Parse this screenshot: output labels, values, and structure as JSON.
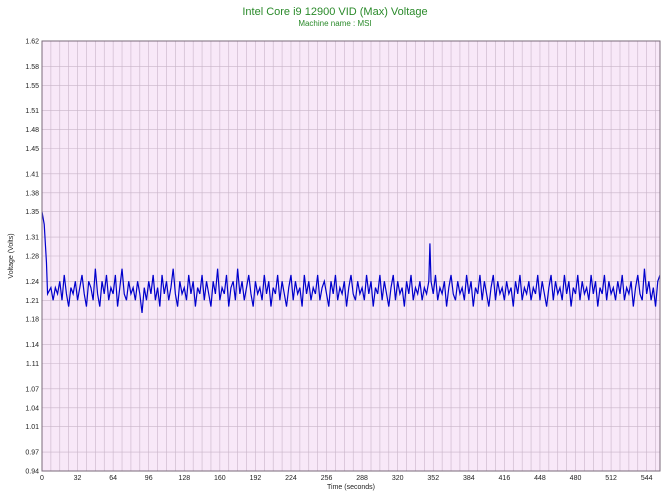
{
  "chart_data": {
    "type": "line",
    "title": "Intel Core i9 12900 VID (Max) Voltage",
    "subtitle": "Machine name : MSI",
    "xlabel": "Time (seconds)",
    "ylabel": "Voltage (Volts)",
    "xlim": [
      0,
      556
    ],
    "ylim": [
      0.94,
      1.62
    ],
    "xticks": [
      0,
      32,
      64,
      96,
      128,
      160,
      192,
      224,
      256,
      288,
      320,
      352,
      384,
      416,
      448,
      480,
      512,
      544
    ],
    "yticks": [
      "0.94",
      "0.97",
      "1.01",
      "1.04",
      "1.07",
      "1.11",
      "1.14",
      "1.18",
      "1.21",
      "1.24",
      "1.28",
      "1.31",
      "1.35",
      "1.38",
      "1.41",
      "1.45",
      "1.48",
      "1.51",
      "1.55",
      "1.58",
      "1.62"
    ],
    "grid": true,
    "colors": {
      "line": "#0000cc",
      "plot_bg": "#f8e8f8",
      "grid": "#c8b4c8",
      "title": "#2a8a2a"
    },
    "series": [
      {
        "values": [
          [
            0,
            1.35
          ],
          [
            1,
            1.34
          ],
          [
            2,
            1.33
          ],
          [
            3,
            1.3
          ],
          [
            4,
            1.27
          ],
          [
            5,
            1.22
          ],
          [
            8,
            1.23
          ],
          [
            10,
            1.21
          ],
          [
            12,
            1.23
          ],
          [
            14,
            1.22
          ],
          [
            16,
            1.24
          ],
          [
            18,
            1.21
          ],
          [
            20,
            1.25
          ],
          [
            22,
            1.22
          ],
          [
            24,
            1.2
          ],
          [
            26,
            1.23
          ],
          [
            28,
            1.22
          ],
          [
            30,
            1.24
          ],
          [
            32,
            1.21
          ],
          [
            34,
            1.23
          ],
          [
            36,
            1.25
          ],
          [
            38,
            1.22
          ],
          [
            40,
            1.2
          ],
          [
            42,
            1.24
          ],
          [
            44,
            1.23
          ],
          [
            46,
            1.21
          ],
          [
            48,
            1.26
          ],
          [
            50,
            1.22
          ],
          [
            52,
            1.2
          ],
          [
            54,
            1.24
          ],
          [
            56,
            1.22
          ],
          [
            58,
            1.25
          ],
          [
            60,
            1.21
          ],
          [
            62,
            1.23
          ],
          [
            64,
            1.22
          ],
          [
            66,
            1.25
          ],
          [
            68,
            1.2
          ],
          [
            70,
            1.23
          ],
          [
            72,
            1.26
          ],
          [
            74,
            1.22
          ],
          [
            76,
            1.21
          ],
          [
            78,
            1.24
          ],
          [
            80,
            1.22
          ],
          [
            82,
            1.23
          ],
          [
            84,
            1.21
          ],
          [
            86,
            1.24
          ],
          [
            88,
            1.22
          ],
          [
            90,
            1.19
          ],
          [
            92,
            1.23
          ],
          [
            94,
            1.21
          ],
          [
            96,
            1.24
          ],
          [
            98,
            1.22
          ],
          [
            100,
            1.25
          ],
          [
            102,
            1.21
          ],
          [
            104,
            1.23
          ],
          [
            106,
            1.2
          ],
          [
            108,
            1.25
          ],
          [
            110,
            1.22
          ],
          [
            112,
            1.24
          ],
          [
            114,
            1.21
          ],
          [
            116,
            1.23
          ],
          [
            118,
            1.26
          ],
          [
            120,
            1.22
          ],
          [
            122,
            1.2
          ],
          [
            124,
            1.24
          ],
          [
            126,
            1.22
          ],
          [
            128,
            1.23
          ],
          [
            130,
            1.21
          ],
          [
            132,
            1.25
          ],
          [
            134,
            1.22
          ],
          [
            136,
            1.24
          ],
          [
            138,
            1.2
          ],
          [
            140,
            1.23
          ],
          [
            142,
            1.22
          ],
          [
            144,
            1.25
          ],
          [
            146,
            1.21
          ],
          [
            148,
            1.24
          ],
          [
            150,
            1.22
          ],
          [
            152,
            1.2
          ],
          [
            154,
            1.24
          ],
          [
            156,
            1.22
          ],
          [
            158,
            1.26
          ],
          [
            160,
            1.21
          ],
          [
            162,
            1.23
          ],
          [
            164,
            1.22
          ],
          [
            166,
            1.25
          ],
          [
            168,
            1.2
          ],
          [
            170,
            1.23
          ],
          [
            172,
            1.24
          ],
          [
            174,
            1.21
          ],
          [
            176,
            1.26
          ],
          [
            178,
            1.22
          ],
          [
            180,
            1.24
          ],
          [
            182,
            1.21
          ],
          [
            184,
            1.23
          ],
          [
            186,
            1.25
          ],
          [
            188,
            1.22
          ],
          [
            190,
            1.2
          ],
          [
            192,
            1.24
          ],
          [
            194,
            1.22
          ],
          [
            196,
            1.23
          ],
          [
            198,
            1.21
          ],
          [
            200,
            1.25
          ],
          [
            202,
            1.22
          ],
          [
            204,
            1.24
          ],
          [
            206,
            1.2
          ],
          [
            208,
            1.23
          ],
          [
            210,
            1.22
          ],
          [
            212,
            1.25
          ],
          [
            214,
            1.21
          ],
          [
            216,
            1.24
          ],
          [
            218,
            1.22
          ],
          [
            220,
            1.2
          ],
          [
            222,
            1.23
          ],
          [
            224,
            1.25
          ],
          [
            226,
            1.21
          ],
          [
            228,
            1.24
          ],
          [
            230,
            1.22
          ],
          [
            232,
            1.23
          ],
          [
            234,
            1.2
          ],
          [
            236,
            1.25
          ],
          [
            238,
            1.22
          ],
          [
            240,
            1.24
          ],
          [
            242,
            1.21
          ],
          [
            244,
            1.23
          ],
          [
            246,
            1.22
          ],
          [
            248,
            1.25
          ],
          [
            250,
            1.21
          ],
          [
            252,
            1.23
          ],
          [
            254,
            1.24
          ],
          [
            256,
            1.22
          ],
          [
            258,
            1.2
          ],
          [
            260,
            1.24
          ],
          [
            262,
            1.22
          ],
          [
            264,
            1.25
          ],
          [
            266,
            1.21
          ],
          [
            268,
            1.23
          ],
          [
            270,
            1.22
          ],
          [
            272,
            1.24
          ],
          [
            274,
            1.2
          ],
          [
            276,
            1.23
          ],
          [
            278,
            1.25
          ],
          [
            280,
            1.22
          ],
          [
            282,
            1.21
          ],
          [
            284,
            1.24
          ],
          [
            286,
            1.22
          ],
          [
            288,
            1.23
          ],
          [
            290,
            1.21
          ],
          [
            292,
            1.25
          ],
          [
            294,
            1.22
          ],
          [
            296,
            1.24
          ],
          [
            298,
            1.2
          ],
          [
            300,
            1.23
          ],
          [
            302,
            1.22
          ],
          [
            304,
            1.25
          ],
          [
            306,
            1.21
          ],
          [
            308,
            1.24
          ],
          [
            310,
            1.22
          ],
          [
            312,
            1.2
          ],
          [
            314,
            1.23
          ],
          [
            316,
            1.25
          ],
          [
            318,
            1.21
          ],
          [
            320,
            1.24
          ],
          [
            322,
            1.22
          ],
          [
            324,
            1.23
          ],
          [
            326,
            1.2
          ],
          [
            328,
            1.24
          ],
          [
            330,
            1.22
          ],
          [
            332,
            1.25
          ],
          [
            334,
            1.21
          ],
          [
            336,
            1.23
          ],
          [
            338,
            1.22
          ],
          [
            340,
            1.24
          ],
          [
            342,
            1.21
          ],
          [
            344,
            1.23
          ],
          [
            346,
            1.22
          ],
          [
            348,
            1.24
          ],
          [
            349,
            1.3
          ],
          [
            350,
            1.24
          ],
          [
            352,
            1.22
          ],
          [
            354,
            1.25
          ],
          [
            356,
            1.21
          ],
          [
            358,
            1.23
          ],
          [
            360,
            1.22
          ],
          [
            362,
            1.24
          ],
          [
            364,
            1.2
          ],
          [
            366,
            1.23
          ],
          [
            368,
            1.25
          ],
          [
            370,
            1.22
          ],
          [
            372,
            1.21
          ],
          [
            374,
            1.24
          ],
          [
            376,
            1.22
          ],
          [
            378,
            1.23
          ],
          [
            380,
            1.21
          ],
          [
            382,
            1.25
          ],
          [
            384,
            1.22
          ],
          [
            386,
            1.24
          ],
          [
            388,
            1.2
          ],
          [
            390,
            1.23
          ],
          [
            392,
            1.22
          ],
          [
            394,
            1.25
          ],
          [
            396,
            1.21
          ],
          [
            398,
            1.24
          ],
          [
            400,
            1.22
          ],
          [
            402,
            1.2
          ],
          [
            404,
            1.23
          ],
          [
            406,
            1.25
          ],
          [
            408,
            1.21
          ],
          [
            410,
            1.24
          ],
          [
            412,
            1.22
          ],
          [
            414,
            1.23
          ],
          [
            416,
            1.21
          ],
          [
            418,
            1.24
          ],
          [
            420,
            1.22
          ],
          [
            422,
            1.23
          ],
          [
            424,
            1.2
          ],
          [
            426,
            1.24
          ],
          [
            428,
            1.22
          ],
          [
            430,
            1.25
          ],
          [
            432,
            1.21
          ],
          [
            434,
            1.23
          ],
          [
            436,
            1.22
          ],
          [
            438,
            1.24
          ],
          [
            440,
            1.21
          ],
          [
            442,
            1.23
          ],
          [
            444,
            1.22
          ],
          [
            446,
            1.25
          ],
          [
            448,
            1.21
          ],
          [
            450,
            1.24
          ],
          [
            452,
            1.22
          ],
          [
            454,
            1.2
          ],
          [
            456,
            1.23
          ],
          [
            458,
            1.25
          ],
          [
            460,
            1.21
          ],
          [
            462,
            1.24
          ],
          [
            464,
            1.22
          ],
          [
            466,
            1.23
          ],
          [
            468,
            1.21
          ],
          [
            470,
            1.25
          ],
          [
            472,
            1.22
          ],
          [
            474,
            1.24
          ],
          [
            476,
            1.2
          ],
          [
            478,
            1.23
          ],
          [
            480,
            1.22
          ],
          [
            482,
            1.25
          ],
          [
            484,
            1.21
          ],
          [
            486,
            1.24
          ],
          [
            488,
            1.22
          ],
          [
            490,
            1.23
          ],
          [
            492,
            1.21
          ],
          [
            494,
            1.25
          ],
          [
            496,
            1.22
          ],
          [
            498,
            1.24
          ],
          [
            500,
            1.2
          ],
          [
            502,
            1.23
          ],
          [
            504,
            1.22
          ],
          [
            506,
            1.25
          ],
          [
            508,
            1.21
          ],
          [
            510,
            1.24
          ],
          [
            512,
            1.22
          ],
          [
            514,
            1.23
          ],
          [
            516,
            1.21
          ],
          [
            518,
            1.24
          ],
          [
            520,
            1.22
          ],
          [
            522,
            1.25
          ],
          [
            524,
            1.21
          ],
          [
            526,
            1.23
          ],
          [
            528,
            1.22
          ],
          [
            530,
            1.24
          ],
          [
            532,
            1.2
          ],
          [
            534,
            1.23
          ],
          [
            536,
            1.25
          ],
          [
            538,
            1.22
          ],
          [
            540,
            1.21
          ],
          [
            542,
            1.26
          ],
          [
            544,
            1.22
          ],
          [
            546,
            1.24
          ],
          [
            548,
            1.21
          ],
          [
            550,
            1.23
          ],
          [
            552,
            1.2
          ],
          [
            554,
            1.24
          ],
          [
            556,
            1.25
          ]
        ]
      }
    ]
  }
}
